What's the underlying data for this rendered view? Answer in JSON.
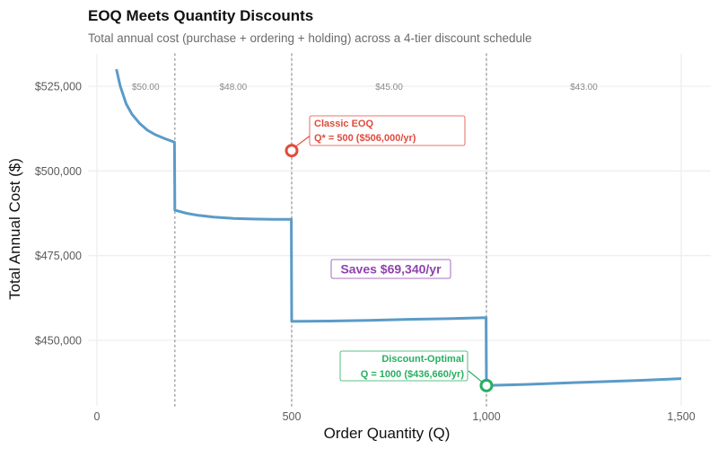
{
  "title": "EOQ Meets Quantity Discounts",
  "subtitle": "Total annual cost (purchase + ordering + holding) across a 4-tier discount schedule",
  "colors": {
    "line": "#5b9bc8",
    "eoq": "#e04b3c",
    "optimal": "#27ae60",
    "savings": "#8e44ad",
    "grid": "#ebebeb",
    "tier_line": "#a8a8a8"
  },
  "chart_data": {
    "type": "line",
    "title": "EOQ Meets Quantity Discounts",
    "subtitle": "Total annual cost (purchase + ordering + holding) across a 4-tier discount schedule",
    "xlabel": "Order Quantity (Q)",
    "ylabel": "Total Annual Cost ($)",
    "xlim": [
      -20,
      1530
    ],
    "ylim": [
      432000,
      536000
    ],
    "x_ticks": [
      0,
      500,
      1000,
      1500
    ],
    "x_tick_labels": [
      "0",
      "500",
      "1,000",
      "1,500"
    ],
    "y_ticks": [
      450000,
      475000,
      500000,
      525000
    ],
    "y_tick_labels": [
      "$450,000",
      "$475,000",
      "$500,000",
      "$525,000"
    ],
    "grid": true,
    "tier_breaks": [
      200,
      500,
      1000
    ],
    "tiers": [
      {
        "label": "$50.00",
        "x": 125,
        "from": 0,
        "to": 199
      },
      {
        "label": "$48.00",
        "x": 350,
        "from": 200,
        "to": 499
      },
      {
        "label": "$45.00",
        "x": 750,
        "from": 500,
        "to": 999
      },
      {
        "label": "$43.00",
        "x": 1250,
        "from": 1000,
        "to": 1500
      }
    ],
    "series": [
      {
        "name": "Total Annual Cost",
        "segments": [
          {
            "x": [
              50,
              60,
              75,
              90,
              110,
              130,
              150,
              175,
              199
            ],
            "y": [
              530000,
              525000,
              519800,
              516700,
              514000,
              512000,
              510700,
              509500,
              508500
            ]
          },
          {
            "x": [
              200,
              230,
              260,
              300,
              350,
              400,
              450,
              499
            ],
            "y": [
              488400,
              487500,
              486900,
              486400,
              486000,
              485800,
              485700,
              485700
            ]
          },
          {
            "x": [
              500,
              600,
              700,
              800,
              900,
              999
            ],
            "y": [
              455600,
              455700,
              455900,
              456200,
              456400,
              456700
            ]
          },
          {
            "x": [
              1000,
              1100,
              1200,
              1300,
              1400,
              1500
            ],
            "y": [
              436660,
              437000,
              437400,
              437800,
              438200,
              438700
            ]
          }
        ]
      }
    ],
    "annotations": [
      {
        "id": "eoq",
        "x": 500,
        "y": 506000,
        "lines": [
          "Classic EOQ",
          "Q* = 500  ($506,000/yr)"
        ]
      },
      {
        "id": "optimal",
        "x": 1000,
        "y": 436660,
        "lines": [
          "Discount-Optimal",
          "Q = 1000  ($436,660/yr)"
        ]
      },
      {
        "id": "savings",
        "text": "Saves $69,340/yr"
      }
    ]
  }
}
